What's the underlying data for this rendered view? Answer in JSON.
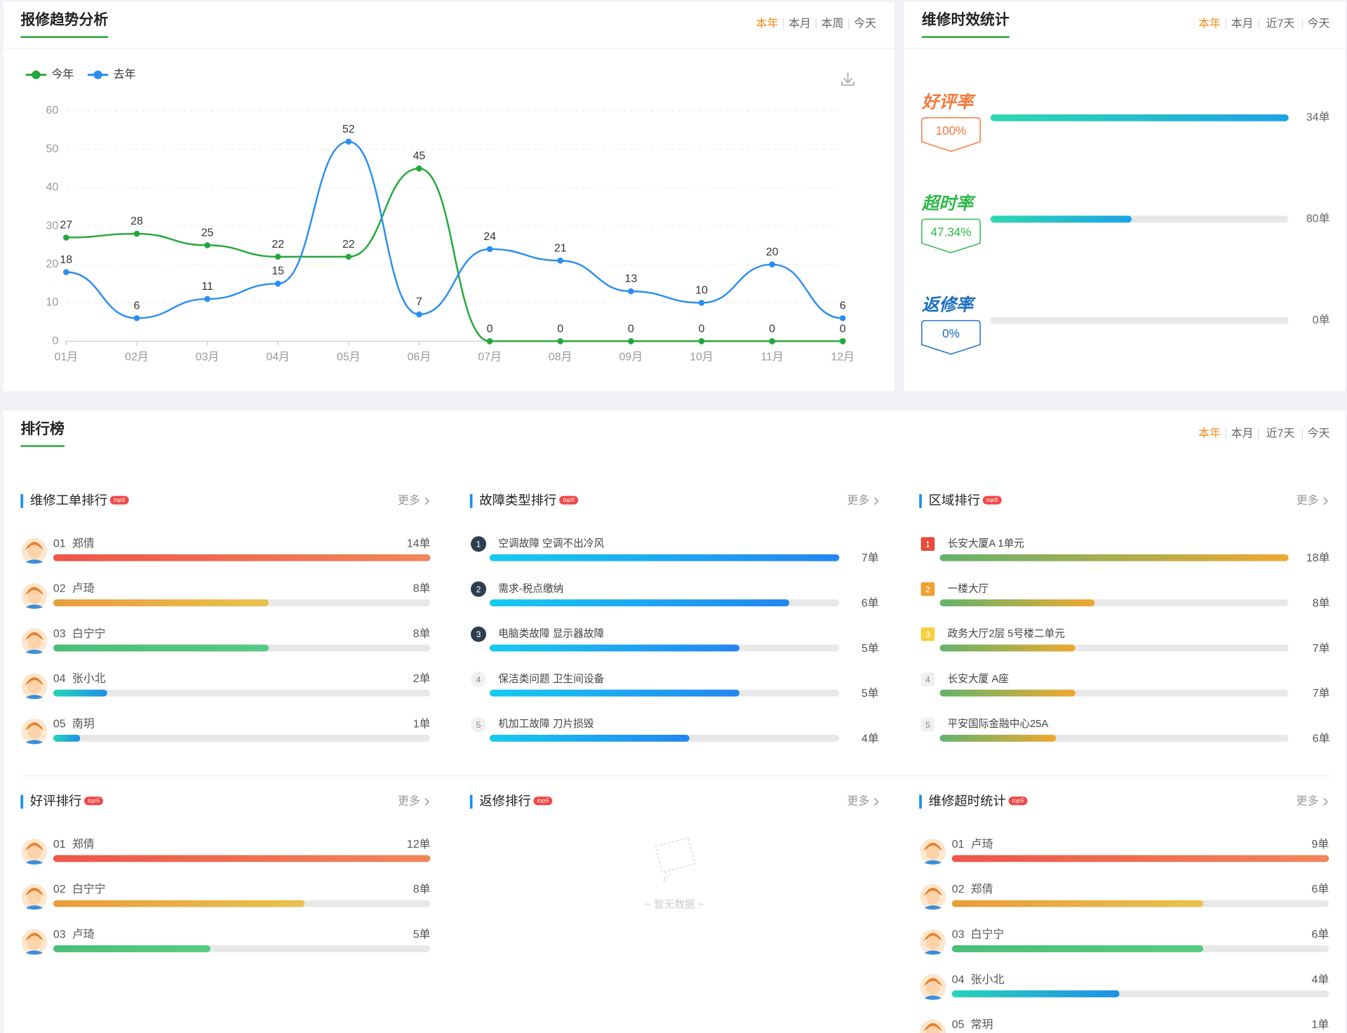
{
  "trend": {
    "title": "报修趋势分析",
    "tabs": [
      "本年",
      "本月",
      "本周",
      "今天"
    ]
  },
  "chart_data": {
    "type": "line",
    "categories": [
      "01月",
      "02月",
      "03月",
      "04月",
      "05月",
      "06月",
      "07月",
      "08月",
      "09月",
      "10月",
      "11月",
      "12月"
    ],
    "series": [
      {
        "name": "今年",
        "color": "#22a83a",
        "values": [
          27,
          28,
          25,
          22,
          22,
          45,
          0,
          0,
          0,
          0,
          0,
          0
        ]
      },
      {
        "name": "去年",
        "color": "#2a8ef0",
        "values": [
          18,
          6,
          11,
          15,
          52,
          7,
          24,
          21,
          13,
          10,
          20,
          6
        ]
      }
    ],
    "ylim": [
      0,
      60
    ],
    "yticks": [
      0,
      10,
      20,
      30,
      40,
      50,
      60
    ],
    "grid": true,
    "smooth": true,
    "legend": "top-left"
  },
  "timeliness": {
    "title": "维修时效统计",
    "tabs": [
      "本年",
      "本月",
      "近7天",
      "今天"
    ],
    "items": [
      {
        "name": "好评率",
        "rate": 100,
        "rate_label": "100%",
        "count": 34,
        "count_label": "34单"
      },
      {
        "name": "超时率",
        "rate": 47.34,
        "rate_label": "47.34%",
        "count": 80,
        "count_label": "80单"
      },
      {
        "name": "返修率",
        "rate": 0,
        "rate_label": "0%",
        "count": 0,
        "count_label": "0单"
      }
    ]
  },
  "ranking": {
    "title": "排行榜",
    "tabs": [
      "本年",
      "本月",
      "近7天",
      "今天"
    ],
    "lists": [
      {
        "title": "维修工单排行",
        "badge": "top5",
        "more": "更多",
        "items": [
          {
            "rank": "01",
            "name": "郑倩",
            "value": 14,
            "value_label": "14单"
          },
          {
            "rank": "02",
            "name": "卢琦",
            "value": 8,
            "value_label": "8单"
          },
          {
            "rank": "03",
            "name": "白宁宁",
            "value": 8,
            "value_label": "8单"
          },
          {
            "rank": "04",
            "name": "张小北",
            "value": 2,
            "value_label": "2单"
          },
          {
            "rank": "05",
            "name": "南玥",
            "value": 1,
            "value_label": "1单"
          }
        ]
      },
      {
        "title": "故障类型排行",
        "badge": "top5",
        "more": "更多",
        "items": [
          {
            "rank": 1,
            "name": "空调故障 空调不出冷风",
            "value": 7,
            "value_label": "7单"
          },
          {
            "rank": 2,
            "name": "需求-税点缴纳",
            "value": 6,
            "value_label": "6单"
          },
          {
            "rank": 3,
            "name": "电脑类故障 显示器故障",
            "value": 5,
            "value_label": "5单"
          },
          {
            "rank": 4,
            "name": "保洁类问题 卫生间设备",
            "value": 5,
            "value_label": "5单"
          },
          {
            "rank": 5,
            "name": "机加工故障 刀片损毁",
            "value": 4,
            "value_label": "4单"
          }
        ]
      },
      {
        "title": "区域排行",
        "badge": "top5",
        "more": "更多",
        "items": [
          {
            "rank": 1,
            "name": "长安大厦A 1单元",
            "value": 18,
            "value_label": "18单"
          },
          {
            "rank": 2,
            "name": "一楼大厅",
            "value": 8,
            "value_label": "8单"
          },
          {
            "rank": 3,
            "name": "政务大厅2层 5号楼二单元",
            "value": 7,
            "value_label": "7单"
          },
          {
            "rank": 4,
            "name": "长安大厦 A座",
            "value": 7,
            "value_label": "7单"
          },
          {
            "rank": 5,
            "name": "平安国际金融中心25A",
            "value": 6,
            "value_label": "6单"
          }
        ]
      },
      {
        "title": "好评排行",
        "badge": "top5",
        "more": "更多",
        "items": [
          {
            "rank": "01",
            "name": "郑倩",
            "value": 12,
            "value_label": "12单"
          },
          {
            "rank": "02",
            "name": "白宁宁",
            "value": 8,
            "value_label": "8单"
          },
          {
            "rank": "03",
            "name": "卢琦",
            "value": 5,
            "value_label": "5单"
          }
        ]
      },
      {
        "title": "返修排行",
        "badge": "top5",
        "more": "更多",
        "items": [],
        "empty": "~ 暂无数据 ~"
      },
      {
        "title": "维修超时统计",
        "badge": "top5",
        "more": "更多",
        "items": [
          {
            "rank": "01",
            "name": "卢琦",
            "value": 9,
            "value_label": "9单"
          },
          {
            "rank": "02",
            "name": "郑倩",
            "value": 6,
            "value_label": "6单"
          },
          {
            "rank": "03",
            "name": "白宁宁",
            "value": 6,
            "value_label": "6单"
          },
          {
            "rank": "04",
            "name": "张小北",
            "value": 4,
            "value_label": "4单"
          },
          {
            "rank": "05",
            "name": "常玥",
            "value": 1,
            "value_label": "1单"
          }
        ]
      }
    ]
  }
}
